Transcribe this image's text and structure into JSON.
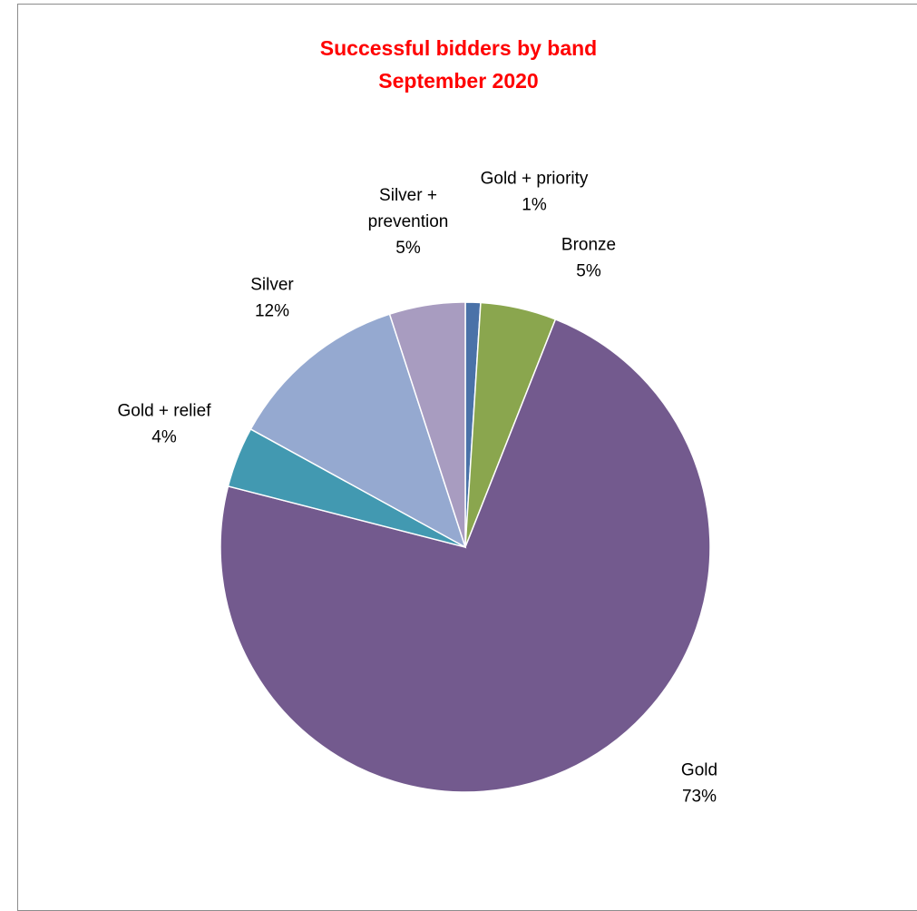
{
  "chart_data": {
    "type": "pie",
    "title": [
      "Successful bidders by band",
      "September 2020"
    ],
    "slices": [
      {
        "label": [
          "Gold + priority"
        ],
        "value": 1,
        "display": "1%",
        "color": "#4a72a8"
      },
      {
        "label": [
          "Bronze"
        ],
        "value": 5,
        "display": "5%",
        "color": "#8aa64e"
      },
      {
        "label": [
          "Gold"
        ],
        "value": 73,
        "display": "73%",
        "color": "#735a8e"
      },
      {
        "label": [
          "Gold + relief"
        ],
        "value": 4,
        "display": "4%",
        "color": "#4299b1"
      },
      {
        "label": [
          "Silver"
        ],
        "value": 12,
        "display": "12%",
        "color": "#95a9d0"
      },
      {
        "label": [
          "Silver +",
          "prevention"
        ],
        "value": 5,
        "display": "5%",
        "color": "#a89cc0"
      }
    ],
    "legend": "none",
    "title_color": "#ff0000"
  }
}
